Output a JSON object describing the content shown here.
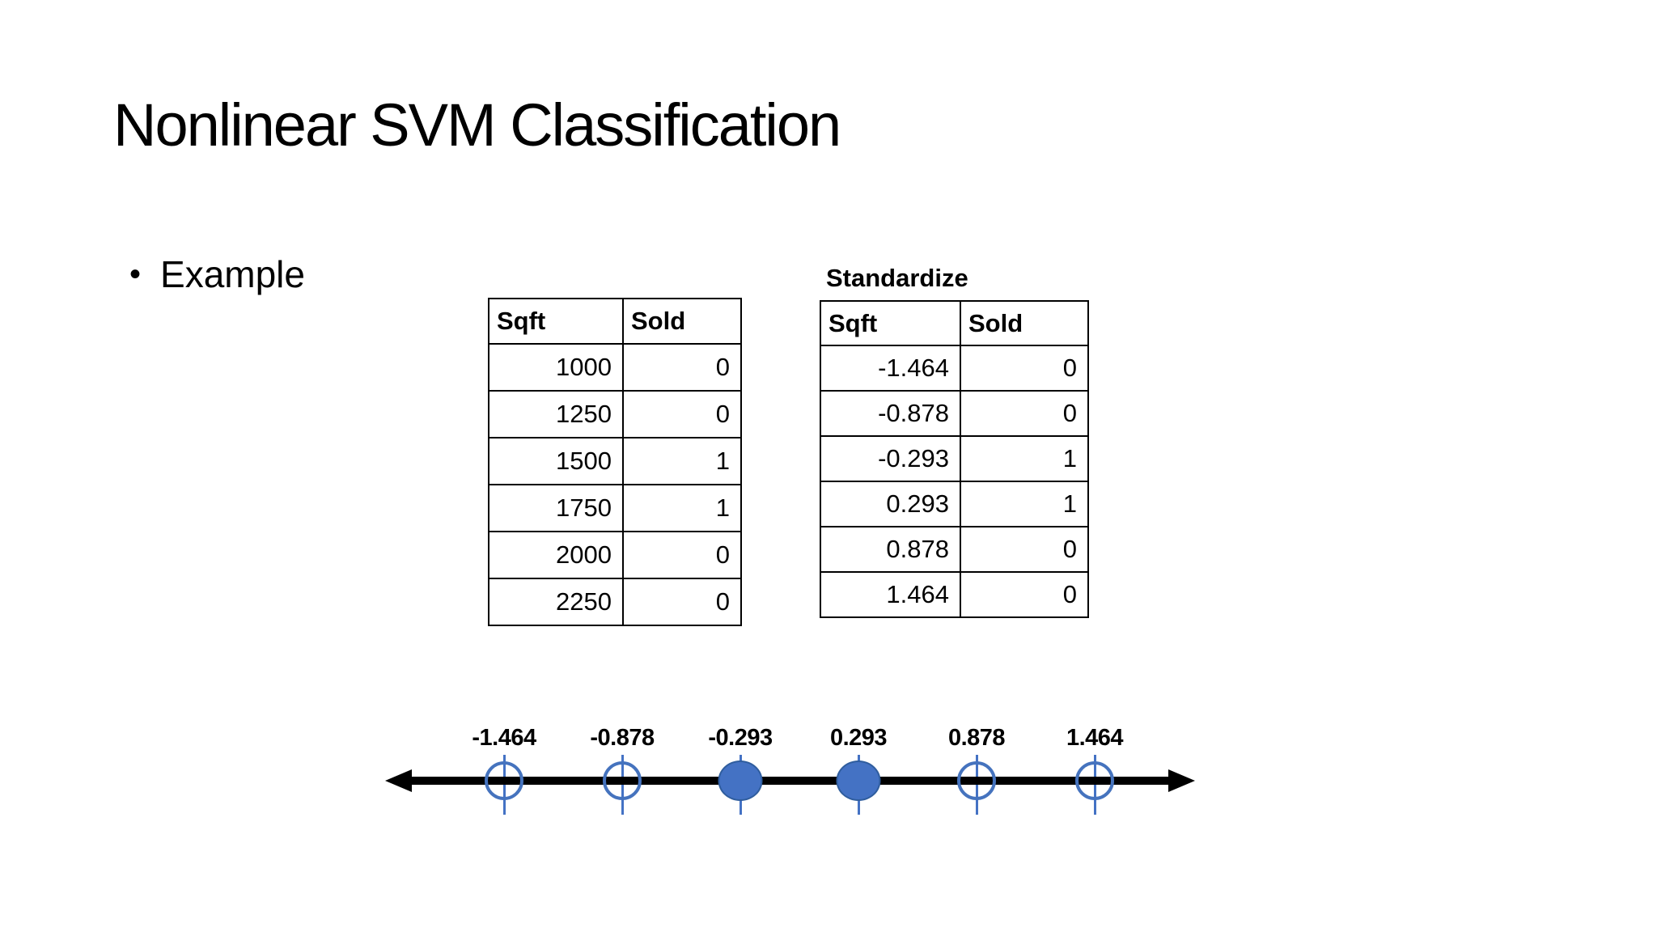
{
  "slide": {
    "title": "Nonlinear SVM Classification",
    "bullet": "Example",
    "bullet_glyph": "•"
  },
  "raw_table": {
    "headers": [
      "Sqft",
      "Sold"
    ],
    "rows": [
      [
        "1000",
        "0"
      ],
      [
        "1250",
        "0"
      ],
      [
        "1500",
        "1"
      ],
      [
        "1750",
        "1"
      ],
      [
        "2000",
        "0"
      ],
      [
        "2250",
        "0"
      ]
    ]
  },
  "standardized_table": {
    "label": "Standardize",
    "headers": [
      "Sqft",
      "Sold"
    ],
    "rows": [
      [
        "-1.464",
        "0"
      ],
      [
        "-0.878",
        "0"
      ],
      [
        "-0.293",
        "1"
      ],
      [
        "0.293",
        "1"
      ],
      [
        "0.878",
        "0"
      ],
      [
        "1.464",
        "0"
      ]
    ]
  },
  "number_line": {
    "points": [
      {
        "label": "-1.464",
        "variant": "open"
      },
      {
        "label": "-0.878",
        "variant": "open"
      },
      {
        "label": "-0.293",
        "variant": "filled"
      },
      {
        "label": "0.293",
        "variant": "filled"
      },
      {
        "label": "0.878",
        "variant": "open"
      },
      {
        "label": "1.464",
        "variant": "open"
      }
    ]
  },
  "chart_data": {
    "type": "scatter",
    "title": "",
    "xlabel": "",
    "ylabel": "",
    "x": [
      -1.464,
      -0.878,
      -0.293,
      0.293,
      0.878,
      1.464
    ],
    "series": [
      {
        "name": "open-circle",
        "x": [
          -1.464,
          -0.878,
          0.878,
          1.464
        ],
        "sold": [
          0,
          0,
          0,
          0
        ]
      },
      {
        "name": "filled-circle",
        "x": [
          -0.293,
          0.293
        ],
        "sold": [
          1,
          1
        ]
      }
    ],
    "axis_range": [
      -2,
      2
    ],
    "grid": false,
    "legend": false
  },
  "colors": {
    "accent_blue": "#4472C4",
    "accent_blue_dark": "#2F5D9E",
    "axis_black": "#000000",
    "background": "#FFFFFF"
  }
}
